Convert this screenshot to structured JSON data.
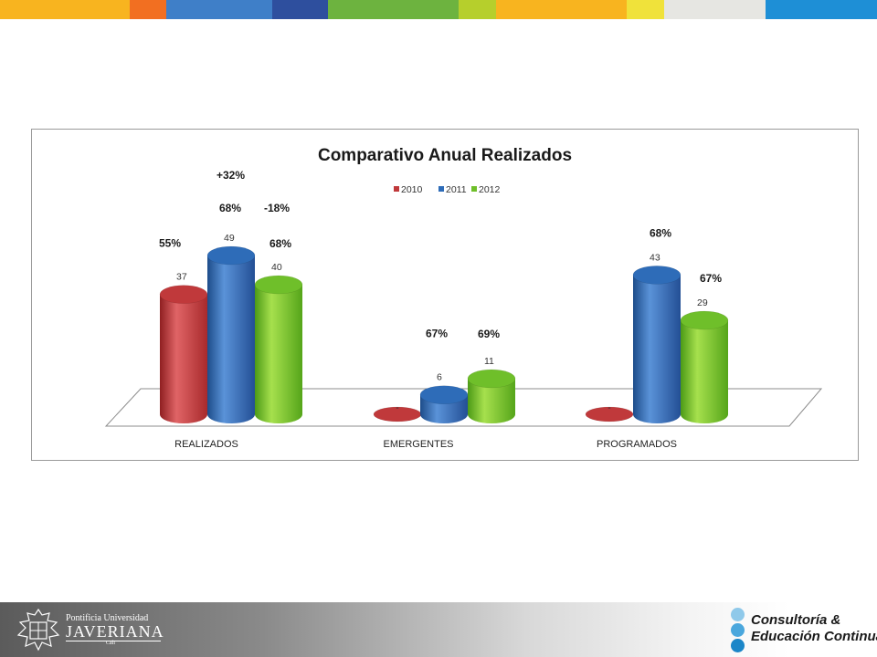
{
  "header": {
    "color_bar": [
      "#f8b41f",
      "#f26f21",
      "#3f7fc8",
      "#2e4f9e",
      "#6db33f",
      "#b6cf2c",
      "#f8b41f",
      "#f0e23a",
      "#e6e6e2",
      "#1e8fd6"
    ]
  },
  "chart_data": {
    "type": "bar",
    "title": "Comparativo Anual Realizados",
    "categories": [
      "REALIZADOS",
      "EMERGENTES",
      "PROGRAMADOS"
    ],
    "series": [
      {
        "name": "2010",
        "color": "#c0393b",
        "values": [
          37,
          0,
          0
        ],
        "labels": [
          "37",
          "-",
          "-"
        ]
      },
      {
        "name": "2011",
        "color": "#2e6cb8",
        "values": [
          49,
          6,
          43
        ],
        "labels": [
          "49",
          "6",
          "43"
        ]
      },
      {
        "name": "2012",
        "color": "#6fbf2a",
        "values": [
          40,
          11,
          29
        ],
        "labels": [
          "40",
          "11",
          "29"
        ]
      }
    ],
    "legend_position": "top-center",
    "bar_style": "3d-cylinder",
    "grid": false,
    "annotations": [
      {
        "text": "55%",
        "category": "REALIZADOS",
        "series": "2010"
      },
      {
        "text": "68%",
        "category": "REALIZADOS",
        "series": "2011"
      },
      {
        "text": "+32%",
        "category": "REALIZADOS",
        "series": "2011"
      },
      {
        "text": "-18%",
        "category": "REALIZADOS",
        "series": "2012"
      },
      {
        "text": "68%",
        "category": "REALIZADOS",
        "series": "2012"
      },
      {
        "text": "67%",
        "category": "EMERGENTES",
        "series": "2011"
      },
      {
        "text": "69%",
        "category": "EMERGENTES",
        "series": "2012"
      },
      {
        "text": "68%",
        "category": "PROGRAMADOS",
        "series": "2011"
      },
      {
        "text": "67%",
        "category": "PROGRAMADOS",
        "series": "2012"
      }
    ]
  },
  "footer": {
    "university": {
      "line1": "Pontificia Universidad",
      "line2": "JAVERIANA",
      "line3": "Cali"
    },
    "consultoria": {
      "line1": "Consultoría &",
      "line2": "Educación Continua"
    }
  }
}
